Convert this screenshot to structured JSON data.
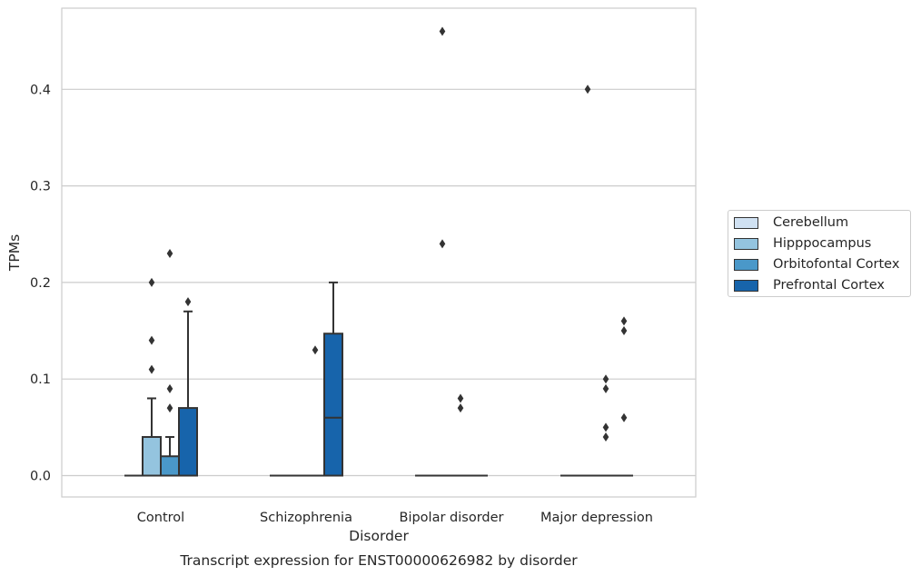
{
  "chart_data": {
    "type": "box",
    "title": "Transcript expression for ENST00000626982 by disorder",
    "xlabel": "Disorder",
    "ylabel": "TPMs",
    "ylim": [
      -0.022,
      0.482
    ],
    "yticks": [
      "0.0",
      "0.1",
      "0.2",
      "0.3",
      "0.4"
    ],
    "ytick_values": [
      0,
      0.1,
      0.2,
      0.3,
      0.4
    ],
    "grid": "horizontal",
    "legend_position": "right",
    "categories": [
      "Control",
      "Schizophrenia",
      "Bipolar disorder",
      "Major depression"
    ],
    "series": [
      {
        "name": "Cerebellum",
        "color": "#d0e1f2",
        "boxes": [
          {
            "q1": 0,
            "median": 0,
            "q3": 0,
            "whisker_low": 0,
            "whisker_high": 0,
            "outliers": []
          },
          {
            "q1": 0,
            "median": 0,
            "q3": 0,
            "whisker_low": 0,
            "whisker_high": 0,
            "outliers": []
          },
          {
            "q1": 0,
            "median": 0,
            "q3": 0,
            "whisker_low": 0,
            "whisker_high": 0,
            "outliers": []
          },
          {
            "q1": 0,
            "median": 0,
            "q3": 0,
            "whisker_low": 0,
            "whisker_high": 0,
            "outliers": []
          }
        ]
      },
      {
        "name": "Hipppocampus",
        "color": "#94c4df",
        "boxes": [
          {
            "q1": 0,
            "median": 0,
            "q3": 0.04,
            "whisker_low": 0,
            "whisker_high": 0.08,
            "outliers": [
              0.2,
              0.14,
              0.11
            ]
          },
          {
            "q1": 0,
            "median": 0,
            "q3": 0,
            "whisker_low": 0,
            "whisker_high": 0,
            "outliers": []
          },
          {
            "q1": 0,
            "median": 0,
            "q3": 0,
            "whisker_low": 0,
            "whisker_high": 0,
            "outliers": [
              0.46,
              0.24
            ]
          },
          {
            "q1": 0,
            "median": 0,
            "q3": 0,
            "whisker_low": 0,
            "whisker_high": 0,
            "outliers": [
              0.4
            ]
          }
        ]
      },
      {
        "name": "Orbitofontal Cortex",
        "color": "#4a98c9",
        "boxes": [
          {
            "q1": 0,
            "median": 0,
            "q3": 0.02,
            "whisker_low": 0,
            "whisker_high": 0.04,
            "outliers": [
              0.23,
              0.09,
              0.07
            ]
          },
          {
            "q1": 0,
            "median": 0,
            "q3": 0,
            "whisker_low": 0,
            "whisker_high": 0,
            "outliers": [
              0.13
            ]
          },
          {
            "q1": 0,
            "median": 0,
            "q3": 0,
            "whisker_low": 0,
            "whisker_high": 0,
            "outliers": [
              0.08,
              0.07
            ]
          },
          {
            "q1": 0,
            "median": 0,
            "q3": 0,
            "whisker_low": 0,
            "whisker_high": 0,
            "outliers": [
              0.1,
              0.09,
              0.05,
              0.04
            ]
          }
        ]
      },
      {
        "name": "Prefrontal Cortex",
        "color": "#1764ab",
        "boxes": [
          {
            "q1": 0,
            "median": 0,
            "q3": 0.07,
            "whisker_low": 0,
            "whisker_high": 0.17,
            "outliers": [
              0.18
            ]
          },
          {
            "q1": 0,
            "median": 0.06,
            "q3": 0.147,
            "whisker_low": 0,
            "whisker_high": 0.2,
            "outliers": []
          },
          {
            "q1": 0,
            "median": 0,
            "q3": 0,
            "whisker_low": 0,
            "whisker_high": 0,
            "outliers": []
          },
          {
            "q1": 0,
            "median": 0,
            "q3": 0,
            "whisker_low": 0,
            "whisker_high": 0,
            "outliers": [
              0.16,
              0.15,
              0.06
            ]
          }
        ]
      }
    ]
  }
}
